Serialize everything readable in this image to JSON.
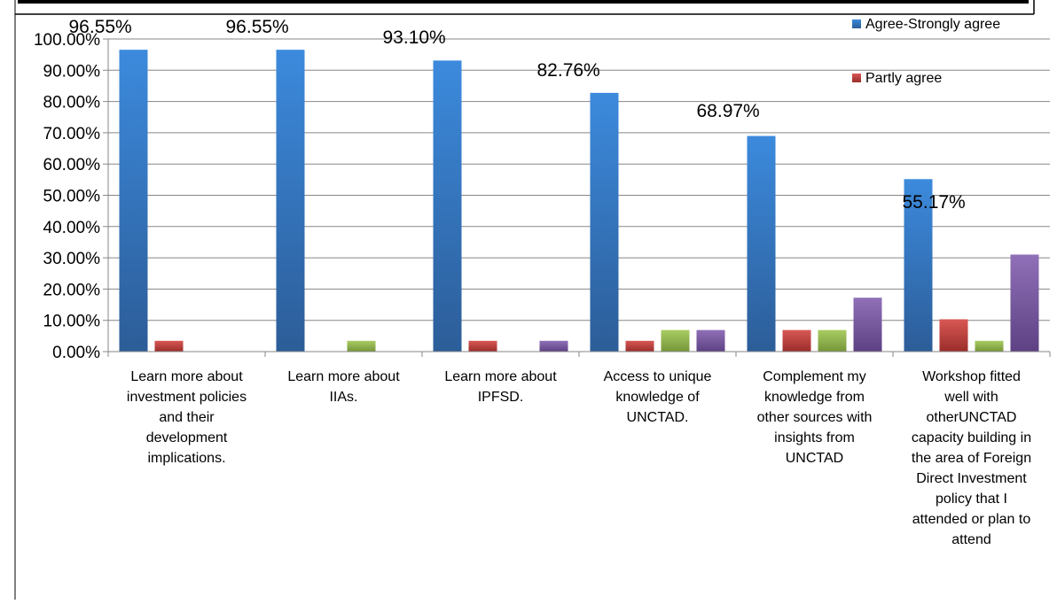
{
  "chart_data": {
    "type": "bar",
    "title": "",
    "xlabel": "",
    "ylabel": "",
    "ylim": [
      0,
      1
    ],
    "ytick_step": 0.1,
    "ytick_labels": [
      "0.00%",
      "10.00%",
      "20.00%",
      "30.00%",
      "40.00%",
      "50.00%",
      "60.00%",
      "70.00%",
      "80.00%",
      "90.00%",
      "100.00%"
    ],
    "grid": true,
    "legend_position": "top-right",
    "categories": [
      [
        "Learn more about",
        "investment policies",
        "and their",
        "development",
        "implications."
      ],
      [
        "Learn more about",
        "IIAs."
      ],
      [
        "Learn more about",
        "IPFSD."
      ],
      [
        "Access to unique",
        "knowledge of",
        "UNCTAD."
      ],
      [
        "Complement my",
        "knowledge from",
        "other sources with",
        "insights from",
        "UNCTAD"
      ],
      [
        "Workshop fitted",
        "well with",
        "otherUNCTAD",
        "capacity building in",
        "the area of Foreign",
        "Direct Investment",
        "policy that I",
        "attended or plan to",
        "attend"
      ]
    ],
    "series": [
      {
        "name": "Agree-Strongly agree",
        "color": "#4a7ebb",
        "values": [
          0.9655,
          0.9655,
          0.931,
          0.8276,
          0.6897,
          0.5517
        ]
      },
      {
        "name": "Partly agree",
        "color": "#be4b48",
        "values": [
          0.0345,
          0.0,
          0.0345,
          0.0345,
          0.069,
          0.1034
        ]
      },
      {
        "color": "#98b954",
        "values": [
          0.0,
          0.0345,
          0.0,
          0.069,
          0.069,
          0.0345
        ]
      },
      {
        "color": "#7d60a0",
        "values": [
          0.0,
          0.0,
          0.0345,
          0.069,
          0.1724,
          0.3103
        ]
      }
    ],
    "data_labels": [
      "96.55%",
      "96.55%",
      "93.10%",
      "82.76%",
      "68.97%",
      "55.17%"
    ]
  }
}
